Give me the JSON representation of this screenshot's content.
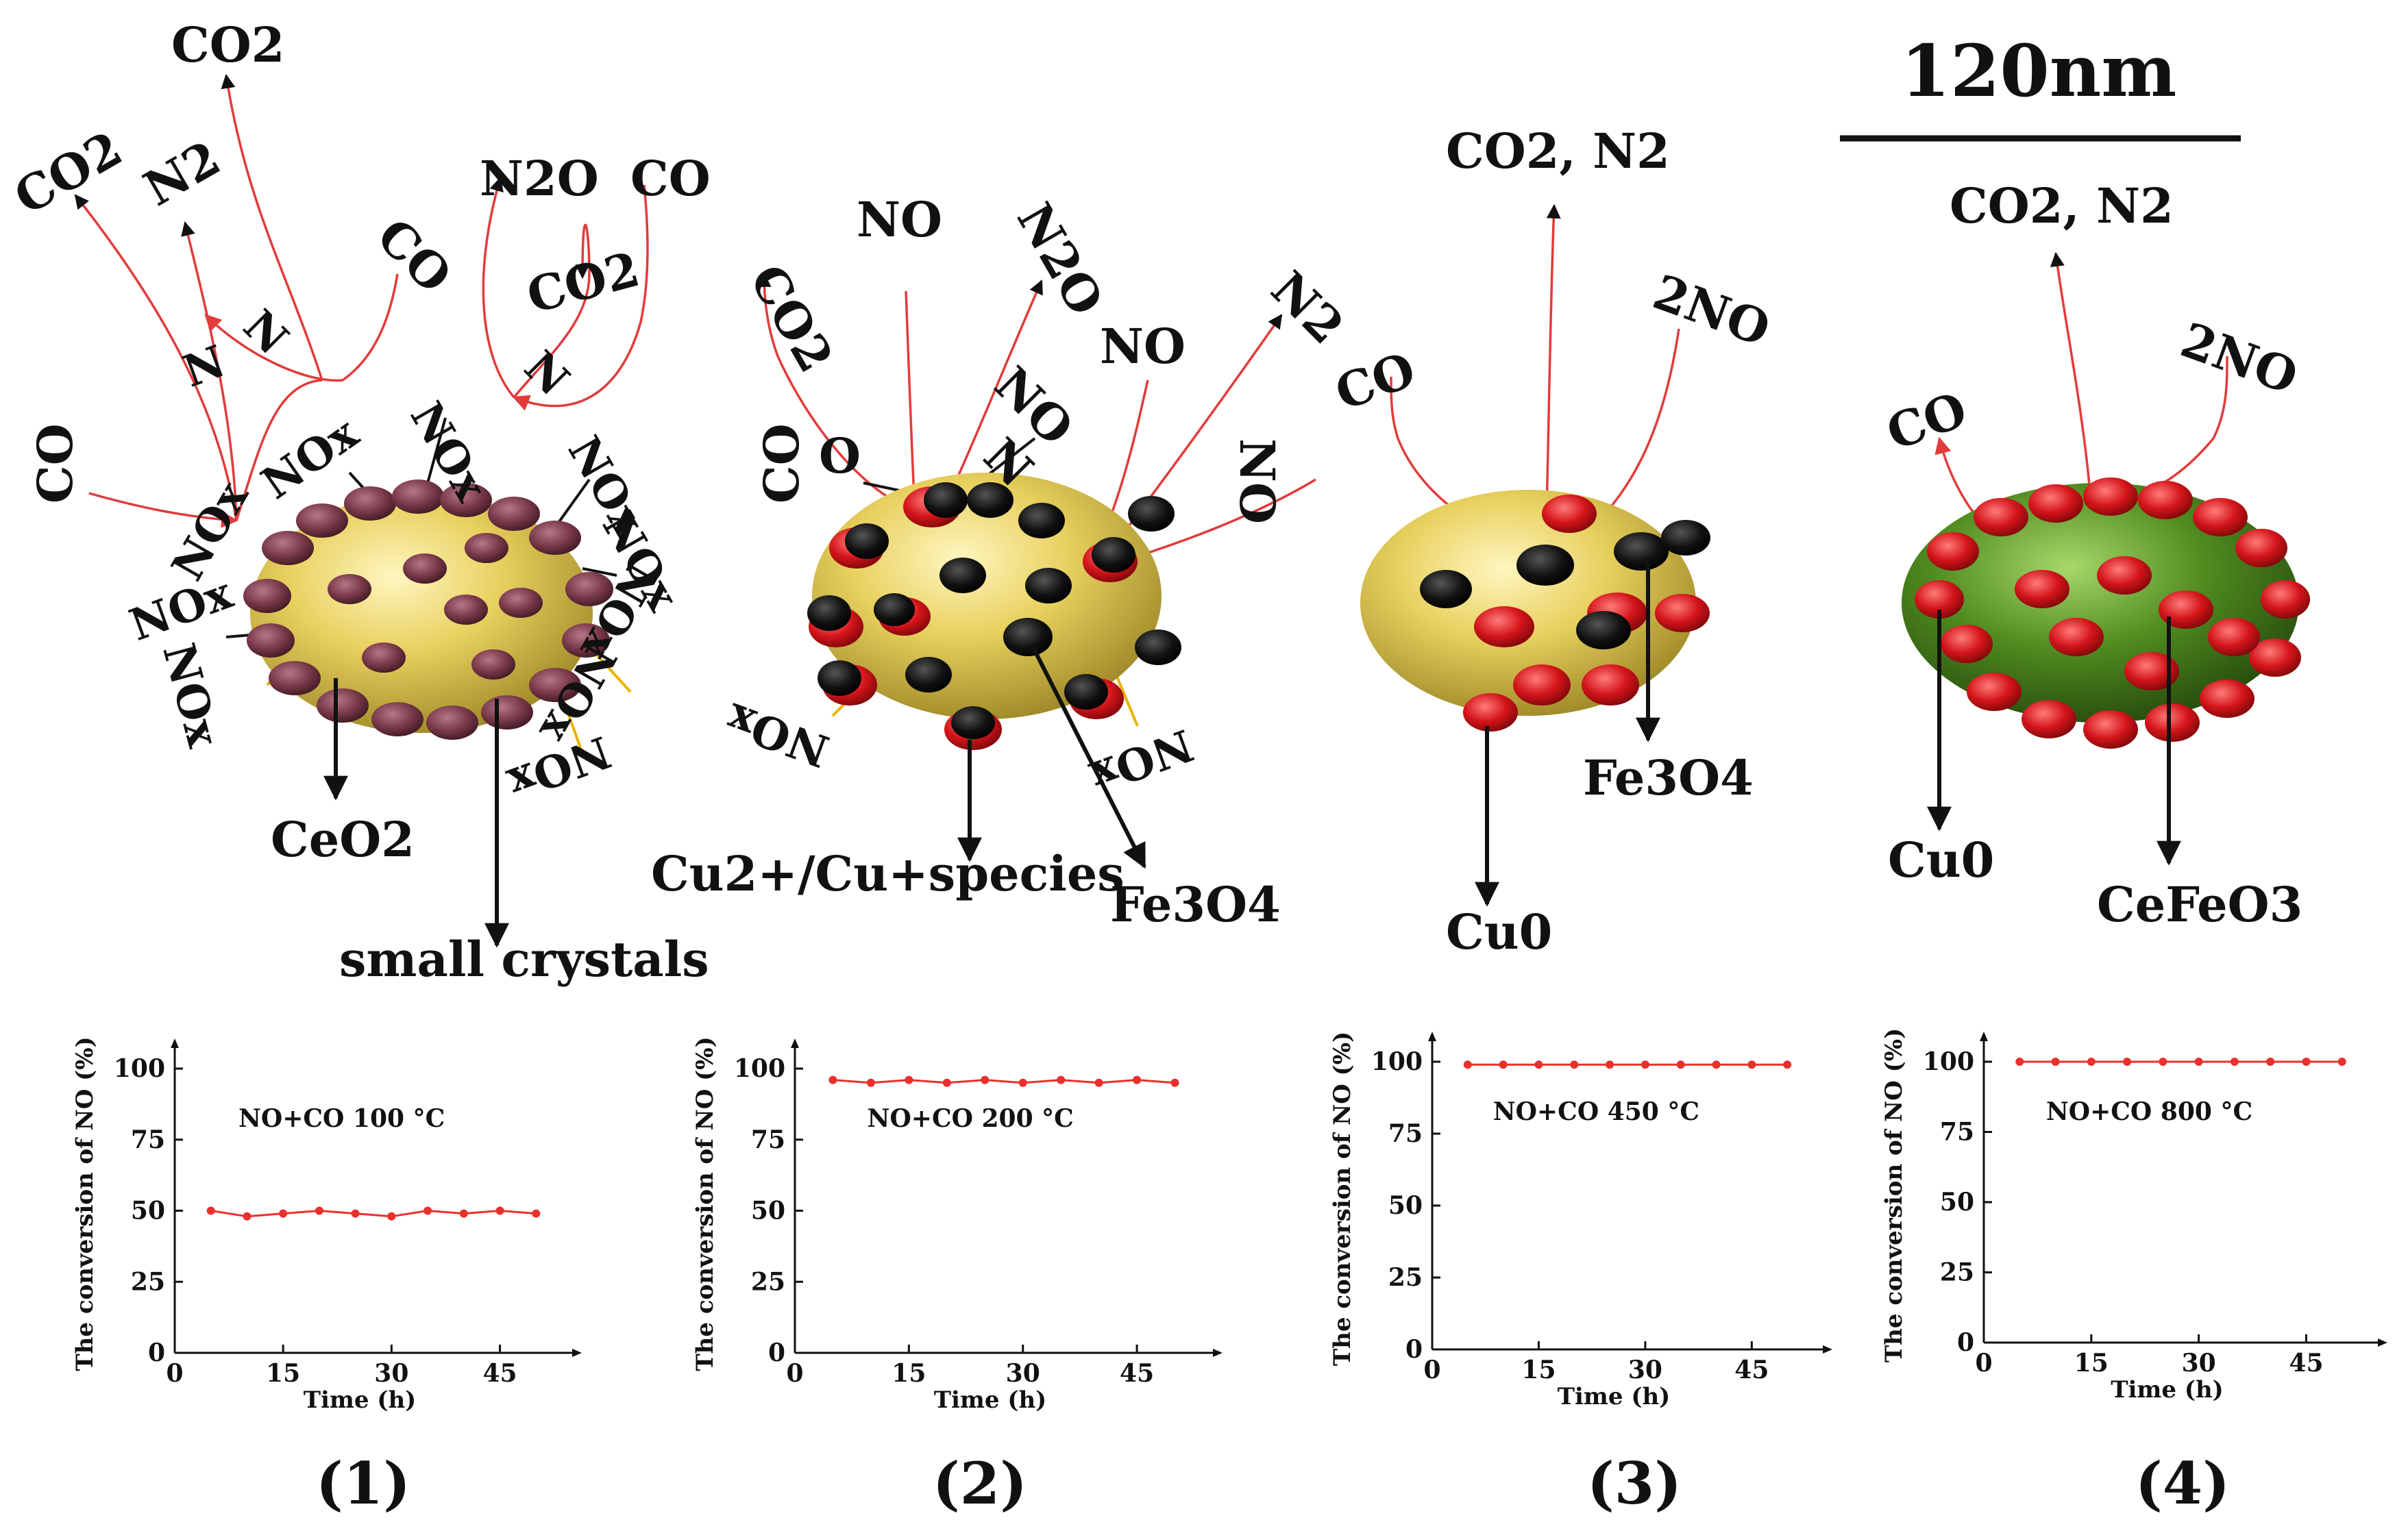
{
  "scale_bar": {
    "label": "120nm"
  },
  "colors": {
    "ceo2_yellow": "#e6cf5a",
    "cefeo3_green": "#4f8a1f",
    "copper_dot": "#d4151a",
    "fe3o4_dot": "#111111",
    "small_crystal": "#7a3a4a",
    "reaction_red": "#e23b3b",
    "arrow_black": "#111111",
    "connector_gold": "#e8b400",
    "chart_line": "#e8312c"
  },
  "diagram": {
    "panel1": {
      "species": [
        "CO2",
        "CO2",
        "N2",
        "N2O",
        "CO",
        "CO2",
        "CO",
        "CO"
      ],
      "nox_labels": [
        "NOx",
        "NOx",
        "NOx",
        "NOx",
        "NOx",
        "NOx",
        "NOx",
        "NOx",
        "NOx",
        "NOx"
      ],
      "n_labels": [
        "N",
        "N",
        "N"
      ],
      "components": [
        "CeO2",
        "small crystals"
      ]
    },
    "panel2": {
      "species": [
        "CO2",
        "NO",
        "N2O",
        "NO",
        "N2",
        "CO",
        "O",
        "NO",
        "N",
        "NO"
      ],
      "nox_labels": [
        "NOx",
        "NOx"
      ],
      "components": [
        "Cu2+/Cu+species",
        "Fe3O4"
      ]
    },
    "panel3": {
      "species": [
        "CO2, N2",
        "2NO",
        "CO"
      ],
      "components": [
        "Fe3O4",
        "Cu0"
      ]
    },
    "panel4": {
      "species": [
        "CO2, N2",
        "2NO",
        "CO"
      ],
      "components": [
        "Cu0",
        "CeFeO3"
      ]
    }
  },
  "chart_data": [
    {
      "type": "line",
      "xlabel": "Time (h)",
      "ylabel": "The conversion of NO (%)",
      "annotation": "NO+CO 100 °C",
      "panel": "(1)",
      "x": [
        5,
        10,
        15,
        20,
        25,
        30,
        35,
        40,
        45,
        50
      ],
      "series": [
        {
          "values": [
            50,
            48,
            49,
            50,
            49,
            48,
            50,
            49,
            50,
            49
          ]
        }
      ],
      "xticks": [
        0,
        15,
        30,
        45
      ],
      "yticks": [
        0,
        25,
        50,
        75,
        100
      ],
      "xlim": [
        0,
        55
      ],
      "ylim": [
        0,
        100
      ]
    },
    {
      "type": "line",
      "xlabel": "Time (h)",
      "ylabel": "The conversion of NO (%)",
      "annotation": "NO+CO 200 °C",
      "panel": "(2)",
      "x": [
        5,
        10,
        15,
        20,
        25,
        30,
        35,
        40,
        45,
        50
      ],
      "series": [
        {
          "values": [
            96,
            95,
            96,
            95,
            96,
            95,
            96,
            95,
            96,
            95
          ]
        }
      ],
      "xticks": [
        0,
        15,
        30,
        45
      ],
      "yticks": [
        0,
        25,
        50,
        75,
        100
      ],
      "xlim": [
        0,
        55
      ],
      "ylim": [
        0,
        100
      ]
    },
    {
      "type": "line",
      "xlabel": "Time (h)",
      "ylabel": "The conversion of NO (%)",
      "annotation": "NO+CO 450 °C",
      "panel": "(3)",
      "x": [
        5,
        10,
        15,
        20,
        25,
        30,
        35,
        40,
        45,
        50
      ],
      "series": [
        {
          "values": [
            99,
            99,
            99,
            99,
            99,
            99,
            99,
            99,
            99,
            99
          ]
        }
      ],
      "xticks": [
        0,
        15,
        30,
        45
      ],
      "yticks": [
        0,
        25,
        50,
        75,
        100
      ],
      "xlim": [
        0,
        55
      ],
      "ylim": [
        0,
        100
      ]
    },
    {
      "type": "line",
      "xlabel": "Time (h)",
      "ylabel": "The conversion of NO (%)",
      "annotation": "NO+CO 800 °C",
      "panel": "(4)",
      "x": [
        5,
        10,
        15,
        20,
        25,
        30,
        35,
        40,
        45,
        50
      ],
      "series": [
        {
          "values": [
            100,
            100,
            100,
            100,
            100,
            100,
            100,
            100,
            100,
            100
          ]
        }
      ],
      "xticks": [
        0,
        15,
        30,
        45
      ],
      "yticks": [
        0,
        25,
        50,
        75,
        100
      ],
      "xlim": [
        0,
        55
      ],
      "ylim": [
        0,
        100
      ]
    }
  ]
}
